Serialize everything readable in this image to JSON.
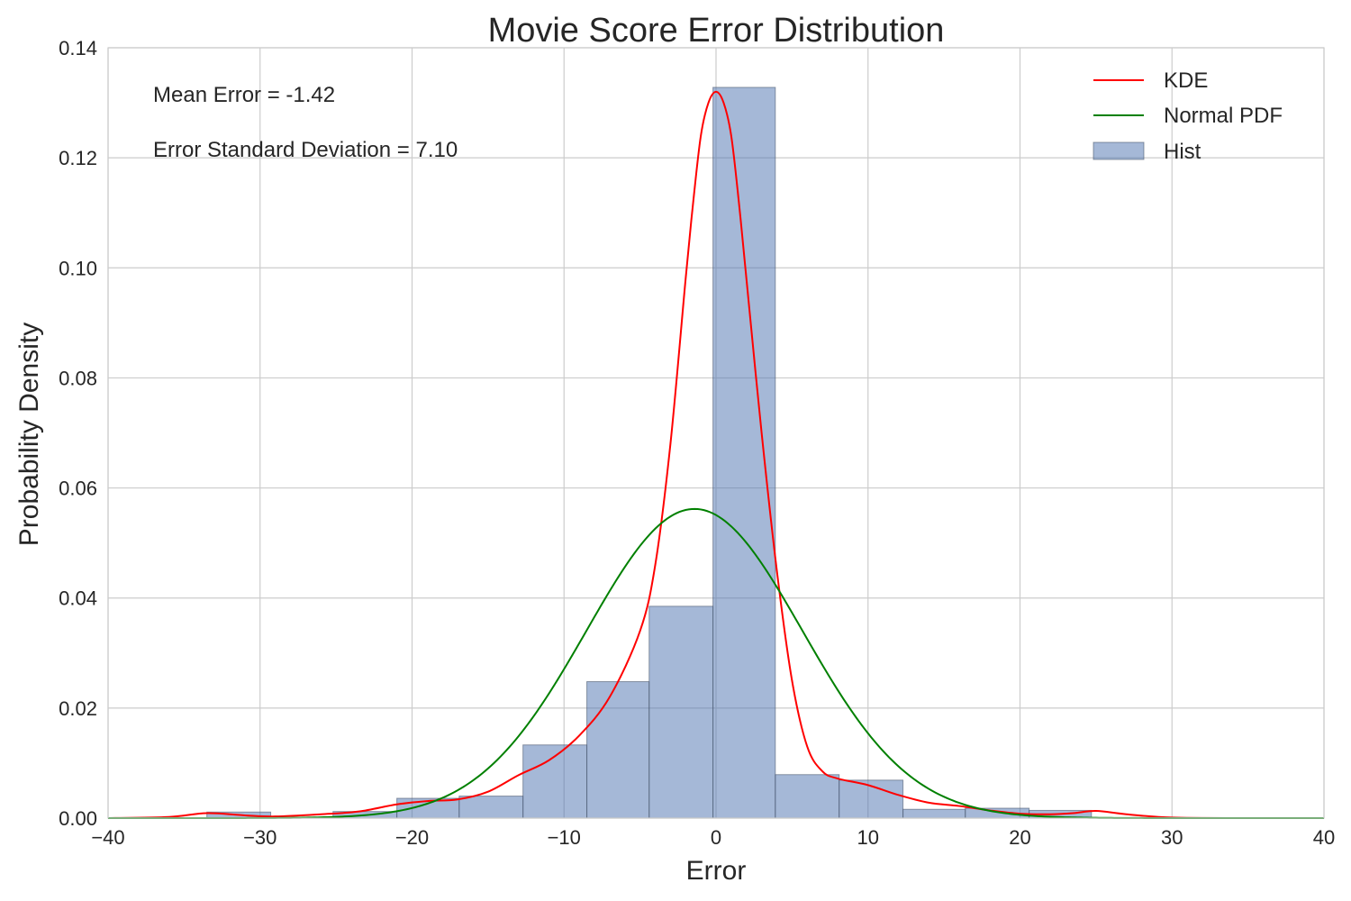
{
  "chart_data": {
    "type": "bar",
    "title": "Movie Score Error Distribution",
    "xlabel": "Error",
    "ylabel": "Probability Density",
    "xlim": [
      -40,
      40
    ],
    "ylim": [
      0,
      0.14
    ],
    "xticks": [
      -40,
      -30,
      -20,
      -10,
      0,
      10,
      20,
      30,
      40
    ],
    "xtick_labels": [
      "−40",
      "−30",
      "−20",
      "−10",
      "0",
      "10",
      "20",
      "30",
      "40"
    ],
    "yticks": [
      0.0,
      0.02,
      0.04,
      0.06,
      0.08,
      0.1,
      0.12,
      0.14
    ],
    "ytick_labels": [
      "0.00",
      "0.02",
      "0.04",
      "0.06",
      "0.08",
      "0.10",
      "0.12",
      "0.14"
    ],
    "grid": true,
    "legend_position": "top-right",
    "annotations": [
      "Mean Error = -1.42",
      "Error Standard Deviation = 7.10"
    ],
    "series": [
      {
        "name": "KDE",
        "type": "line",
        "color": "#ff0000",
        "x": [
          -40,
          -36,
          -33.5,
          -31,
          -29,
          -26,
          -23.5,
          -21,
          -19,
          -17,
          -15,
          -13,
          -11,
          -9,
          -7,
          -5,
          -4,
          -3,
          -2,
          -1.5,
          -1,
          -0.5,
          0,
          0.5,
          1,
          1.5,
          2,
          3,
          4,
          5,
          6,
          7,
          8,
          10,
          12,
          14,
          16,
          18,
          20,
          22,
          23.5,
          25,
          27,
          30,
          35,
          40
        ],
        "y": [
          0.0,
          0.0002,
          0.0009,
          0.0005,
          0.0003,
          0.0007,
          0.0012,
          0.0025,
          0.0031,
          0.0034,
          0.0048,
          0.0078,
          0.0105,
          0.015,
          0.022,
          0.034,
          0.046,
          0.068,
          0.098,
          0.112,
          0.124,
          0.13,
          0.132,
          0.13,
          0.124,
          0.112,
          0.098,
          0.07,
          0.045,
          0.025,
          0.013,
          0.0085,
          0.0072,
          0.006,
          0.0042,
          0.0028,
          0.0022,
          0.0014,
          0.0008,
          0.0007,
          0.0009,
          0.0013,
          0.0007,
          0.0001,
          0.0,
          0.0
        ]
      },
      {
        "name": "Normal PDF",
        "type": "line",
        "color": "#008000",
        "mean": -1.42,
        "std": 7.1
      },
      {
        "name": "Hist",
        "type": "bar",
        "color": "#4c72b0",
        "bins": [
          -33.5,
          -29.3,
          -25.2,
          -21.0,
          -16.9,
          -12.7,
          -8.5,
          -4.4,
          -0.2,
          3.9,
          8.1,
          12.3,
          16.4,
          20.6,
          24.7
        ],
        "values": [
          0.0011,
          0.0001,
          0.0012,
          0.0036,
          0.004,
          0.0133,
          0.0248,
          0.0385,
          0.1328,
          0.0079,
          0.0069,
          0.0016,
          0.0018,
          0.0014
        ]
      }
    ]
  }
}
